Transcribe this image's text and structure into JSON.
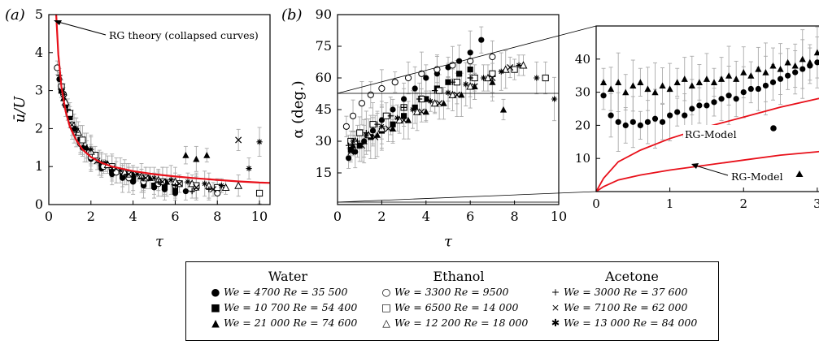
{
  "panel_a": {
    "label": "(a)",
    "annotation": "RG theory (collapsed curves)",
    "ylabel_num": "ū",
    "ylabel_sep": "/",
    "ylabel_den": "U",
    "xlabel": "τ",
    "xticks": [
      "0",
      "2",
      "4",
      "6",
      "8",
      "10"
    ],
    "yticks": [
      "0",
      "1",
      "2",
      "3",
      "4",
      "5"
    ]
  },
  "panel_b": {
    "label": "(b)",
    "ylabel": "α (deg.)",
    "xlabel": "τ",
    "xticks": [
      "0",
      "2",
      "4",
      "6",
      "8",
      "10"
    ],
    "yticks": [
      "15",
      "30",
      "45",
      "60",
      "75",
      "90"
    ]
  },
  "inset": {
    "xticks": [
      "0",
      "1",
      "2",
      "3"
    ],
    "yticks": [
      "10",
      "20",
      "30",
      "40"
    ],
    "model_circle": "RG-Model",
    "model_triangle": "RG-Model"
  },
  "legend": {
    "columns": [
      {
        "title": "Water",
        "entries": [
          {
            "marker": "●",
            "text": "We = 4700 Re = 35 500"
          },
          {
            "marker": "■",
            "text": "We = 10 700 Re = 54 400"
          },
          {
            "marker": "▲",
            "text": "We = 21 000 Re = 74 600"
          }
        ]
      },
      {
        "title": "Ethanol",
        "entries": [
          {
            "marker": "○",
            "text": "We = 3300 Re = 9500"
          },
          {
            "marker": "□",
            "text": "We = 6500 Re = 14 000"
          },
          {
            "marker": "△",
            "text": "We = 12 200 Re = 18 000"
          }
        ]
      },
      {
        "title": "Acetone",
        "entries": [
          {
            "marker": "+",
            "text": "We = 3000 Re = 37 600"
          },
          {
            "marker": "×",
            "text": "We = 7100 Re = 62 000"
          },
          {
            "marker": "✱",
            "text": "We = 13 000 Re = 84 000"
          }
        ]
      }
    ]
  },
  "chart_data": [
    {
      "type": "scatter",
      "panel": "a",
      "xlabel": "τ",
      "ylabel": "ū/U",
      "xlim": [
        0,
        10.5
      ],
      "ylim": [
        0,
        5
      ],
      "series": [
        {
          "name": "RG theory (collapsed curves)",
          "kind": "line",
          "color": "#e8101a",
          "x": [
            0.35,
            0.45,
            0.6,
            0.8,
            1.0,
            1.3,
            1.6,
            2.0,
            2.5,
            3.0,
            4.0,
            5.0,
            6.0,
            7.0,
            8.0,
            9.0,
            10.0,
            10.5
          ],
          "y": [
            5.0,
            3.95,
            3.1,
            2.45,
            2.05,
            1.7,
            1.45,
            1.25,
            1.1,
            1.0,
            0.88,
            0.8,
            0.74,
            0.69,
            0.65,
            0.61,
            0.58,
            0.57
          ]
        },
        {
          "name": "We = 4700 Re = 35 500",
          "marker": "circle-filled",
          "x": [
            0.5,
            0.8,
            1.2,
            1.6,
            2.0,
            2.5,
            3.0,
            3.5,
            4.0,
            4.5,
            5.0,
            5.5,
            6.0,
            6.5
          ],
          "y": [
            3.3,
            2.6,
            2.0,
            1.5,
            1.2,
            0.95,
            0.8,
            0.7,
            0.6,
            0.5,
            0.45,
            0.4,
            0.3,
            0.35
          ]
        },
        {
          "name": "We = 10 700 Re = 54 400",
          "marker": "square-filled",
          "x": [
            0.6,
            1.0,
            1.5,
            2.0,
            2.5,
            3.0,
            3.5,
            4.0,
            4.5,
            5.0,
            5.5,
            6.0
          ],
          "y": [
            3.0,
            2.3,
            1.7,
            1.3,
            1.05,
            0.9,
            0.75,
            0.65,
            0.55,
            0.5,
            0.45,
            0.4
          ]
        },
        {
          "name": "We = 21 000 Re = 74 600",
          "marker": "triangle-filled",
          "x": [
            0.7,
            1.2,
            1.8,
            2.5,
            3.2,
            4.0,
            4.8,
            5.6,
            6.5,
            7.0,
            7.5
          ],
          "y": [
            2.8,
            2.0,
            1.5,
            1.1,
            0.9,
            0.8,
            0.7,
            0.6,
            1.3,
            1.2,
            1.3
          ]
        },
        {
          "name": "We = 3300 Re = 9500",
          "marker": "circle-open",
          "x": [
            0.4,
            0.7,
            1.1,
            1.5,
            2.0,
            2.6,
            3.2,
            3.8,
            4.5,
            5.2,
            6.0,
            7.0,
            8.0
          ],
          "y": [
            3.6,
            2.9,
            2.1,
            1.6,
            1.25,
            1.0,
            0.85,
            0.7,
            0.6,
            0.55,
            0.5,
            0.45,
            0.3
          ]
        },
        {
          "name": "We = 6500 Re = 14 000",
          "marker": "square-open",
          "x": [
            0.6,
            1.0,
            1.6,
            2.2,
            3.0,
            3.8,
            4.6,
            5.4,
            6.2,
            7.0,
            8.0,
            10.0
          ],
          "y": [
            3.1,
            2.4,
            1.7,
            1.3,
            1.0,
            0.8,
            0.7,
            0.6,
            0.55,
            0.5,
            0.45,
            0.3
          ]
        },
        {
          "name": "We = 12 200 Re = 18 000",
          "marker": "triangle-open",
          "x": [
            0.8,
            1.4,
            2.0,
            2.8,
            3.6,
            4.4,
            5.2,
            6.0,
            6.8,
            7.6,
            8.4,
            9.0
          ],
          "y": [
            2.7,
            1.9,
            1.4,
            1.05,
            0.85,
            0.75,
            0.65,
            0.6,
            0.55,
            0.5,
            0.45,
            0.5
          ]
        },
        {
          "name": "We = 3000 Re = 37 600",
          "marker": "plus",
          "x": [
            0.5,
            0.9,
            1.3,
            1.8,
            2.4,
            3.0,
            3.7,
            4.4,
            5.2,
            6.0,
            6.8,
            7.6
          ],
          "y": [
            3.4,
            2.5,
            1.9,
            1.45,
            1.1,
            0.9,
            0.8,
            0.7,
            0.6,
            0.5,
            0.35,
            0.4
          ]
        },
        {
          "name": "We = 7100 Re = 62 000",
          "marker": "cross",
          "x": [
            0.6,
            1.1,
            1.7,
            2.3,
            3.0,
            3.8,
            4.6,
            5.4,
            6.2,
            7.0,
            7.8,
            9.0
          ],
          "y": [
            3.0,
            2.1,
            1.5,
            1.15,
            0.95,
            0.8,
            0.7,
            0.6,
            0.55,
            0.45,
            0.4,
            1.7
          ]
        },
        {
          "name": "We = 13 000 Re = 84 000",
          "marker": "asterisk",
          "x": [
            0.7,
            1.3,
            2.0,
            2.7,
            3.4,
            4.2,
            5.0,
            5.8,
            6.6,
            7.4,
            8.2,
            9.5,
            10.0
          ],
          "y": [
            2.9,
            2.0,
            1.45,
            1.1,
            0.9,
            0.8,
            0.7,
            0.65,
            0.6,
            0.55,
            0.5,
            0.95,
            1.65
          ]
        }
      ]
    },
    {
      "type": "scatter",
      "panel": "b",
      "xlabel": "τ",
      "ylabel": "α (deg.)",
      "xlim": [
        0,
        10
      ],
      "ylim": [
        0,
        90
      ],
      "series": [
        {
          "name": "We = 4700 Re = 35 500",
          "marker": "circle-filled",
          "x": [
            0.5,
            0.8,
            1.2,
            1.6,
            2.0,
            2.5,
            3.0,
            3.5,
            4.0,
            4.5,
            5.0,
            5.5,
            6.0,
            6.5
          ],
          "y": [
            22,
            25,
            30,
            35,
            40,
            45,
            50,
            55,
            60,
            62,
            65,
            68,
            72,
            78
          ]
        },
        {
          "name": "We = 10 700 Re = 54 400",
          "marker": "square-filled",
          "x": [
            0.6,
            1.0,
            1.5,
            2.0,
            2.5,
            3.0,
            3.5,
            4.0,
            4.5,
            5.0,
            5.5,
            6.0
          ],
          "y": [
            26,
            28,
            32,
            35,
            38,
            42,
            46,
            50,
            55,
            58,
            62,
            64
          ]
        },
        {
          "name": "We = 21 000 Re = 74 600",
          "marker": "triangle-filled",
          "x": [
            0.7,
            1.2,
            1.8,
            2.5,
            3.2,
            4.0,
            4.8,
            5.6,
            6.2,
            7.0,
            7.5
          ],
          "y": [
            28,
            30,
            33,
            36,
            40,
            44,
            48,
            52,
            56,
            58,
            45
          ]
        },
        {
          "name": "We = 3300 Re = 9500",
          "marker": "circle-open",
          "x": [
            0.4,
            0.7,
            1.1,
            1.5,
            2.0,
            2.6,
            3.2,
            3.8,
            4.5,
            5.2,
            6.0,
            7.0
          ],
          "y": [
            37,
            42,
            48,
            52,
            55,
            58,
            60,
            62,
            64,
            66,
            68,
            70
          ]
        },
        {
          "name": "We = 6500 Re = 14 000",
          "marker": "square-open",
          "x": [
            0.6,
            1.0,
            1.6,
            2.2,
            3.0,
            3.8,
            4.6,
            5.4,
            6.2,
            7.0,
            8.0,
            9.4
          ],
          "y": [
            30,
            34,
            38,
            42,
            46,
            50,
            54,
            58,
            60,
            62,
            64,
            60
          ]
        },
        {
          "name": "We = 12 200 Re = 18 000",
          "marker": "triangle-open",
          "x": [
            0.8,
            1.4,
            2.0,
            2.8,
            3.6,
            4.4,
            5.2,
            6.0,
            6.8,
            7.6,
            8.4
          ],
          "y": [
            30,
            33,
            36,
            40,
            44,
            48,
            52,
            56,
            60,
            64,
            66
          ]
        },
        {
          "name": "We = 3000 Re = 37 600",
          "marker": "plus",
          "x": [
            0.5,
            0.9,
            1.3,
            1.8,
            2.4,
            3.0,
            3.7,
            4.4,
            5.2,
            6.0
          ],
          "y": [
            28,
            30,
            34,
            38,
            42,
            46,
            50,
            54,
            58,
            60
          ]
        },
        {
          "name": "We = 7100 Re = 62 000",
          "marker": "cross",
          "x": [
            0.6,
            1.1,
            1.7,
            2.3,
            3.0,
            3.8,
            4.6,
            5.4,
            6.2,
            7.0,
            7.8
          ],
          "y": [
            25,
            28,
            32,
            36,
            40,
            44,
            48,
            52,
            56,
            60,
            65
          ]
        },
        {
          "name": "We = 13 000 Re = 84 000",
          "marker": "asterisk",
          "x": [
            0.7,
            1.3,
            2.0,
            2.7,
            3.4,
            4.2,
            5.0,
            5.8,
            6.6,
            7.4,
            8.2,
            9.0,
            9.8
          ],
          "y": [
            30,
            33,
            37,
            41,
            45,
            49,
            53,
            57,
            60,
            63,
            66,
            60,
            50
          ]
        }
      ]
    },
    {
      "type": "scatter",
      "panel": "inset",
      "xlim": [
        0,
        3.2
      ],
      "ylim": [
        0,
        50
      ],
      "series": [
        {
          "name": "We = 4700 Re = 35 500",
          "marker": "circle-filled",
          "x": [
            0.1,
            0.2,
            0.3,
            0.4,
            0.5,
            0.6,
            0.7,
            0.8,
            0.9,
            1.0,
            1.1,
            1.2,
            1.3,
            1.4,
            1.5,
            1.6,
            1.7,
            1.8,
            1.9,
            2.0,
            2.1,
            2.2,
            2.3,
            2.4,
            2.5,
            2.6,
            2.7,
            2.8,
            2.9,
            3.0,
            3.1
          ],
          "y": [
            29,
            23,
            21,
            20,
            21,
            20,
            21,
            22,
            21,
            23,
            24,
            23,
            25,
            26,
            26,
            27,
            28,
            29,
            28,
            30,
            31,
            31,
            32,
            33,
            34,
            35,
            36,
            37,
            38,
            39,
            44
          ]
        },
        {
          "name": "We = 21 000 Re = 74 600",
          "marker": "triangle-filled",
          "x": [
            0.1,
            0.2,
            0.3,
            0.4,
            0.5,
            0.6,
            0.7,
            0.8,
            0.9,
            1.0,
            1.1,
            1.2,
            1.3,
            1.4,
            1.5,
            1.6,
            1.7,
            1.8,
            1.9,
            2.0,
            2.1,
            2.2,
            2.3,
            2.4,
            2.5,
            2.6,
            2.7,
            2.8,
            2.9,
            3.0,
            3.1
          ],
          "y": [
            33,
            31,
            33,
            30,
            32,
            33,
            31,
            30,
            32,
            31,
            33,
            34,
            32,
            33,
            34,
            33,
            34,
            35,
            34,
            36,
            35,
            37,
            36,
            38,
            37,
            39,
            38,
            40,
            39,
            42,
            45
          ]
        },
        {
          "name": "RG-Model (circle)",
          "kind": "line",
          "color": "#e8101a",
          "x": [
            0,
            0.1,
            0.3,
            0.6,
            1.0,
            1.5,
            2.0,
            2.5,
            3.0,
            3.2
          ],
          "y": [
            0,
            4,
            9,
            12.5,
            16,
            19.5,
            22.5,
            25.5,
            28,
            29
          ]
        },
        {
          "name": "RG-Model (triangle)",
          "kind": "line",
          "color": "#e8101a",
          "x": [
            0,
            0.1,
            0.3,
            0.6,
            1.0,
            1.5,
            2.0,
            2.5,
            3.0,
            3.2
          ],
          "y": [
            0,
            1.5,
            3.5,
            5,
            6.5,
            8,
            9.5,
            11,
            12,
            12.5
          ]
        }
      ]
    }
  ]
}
